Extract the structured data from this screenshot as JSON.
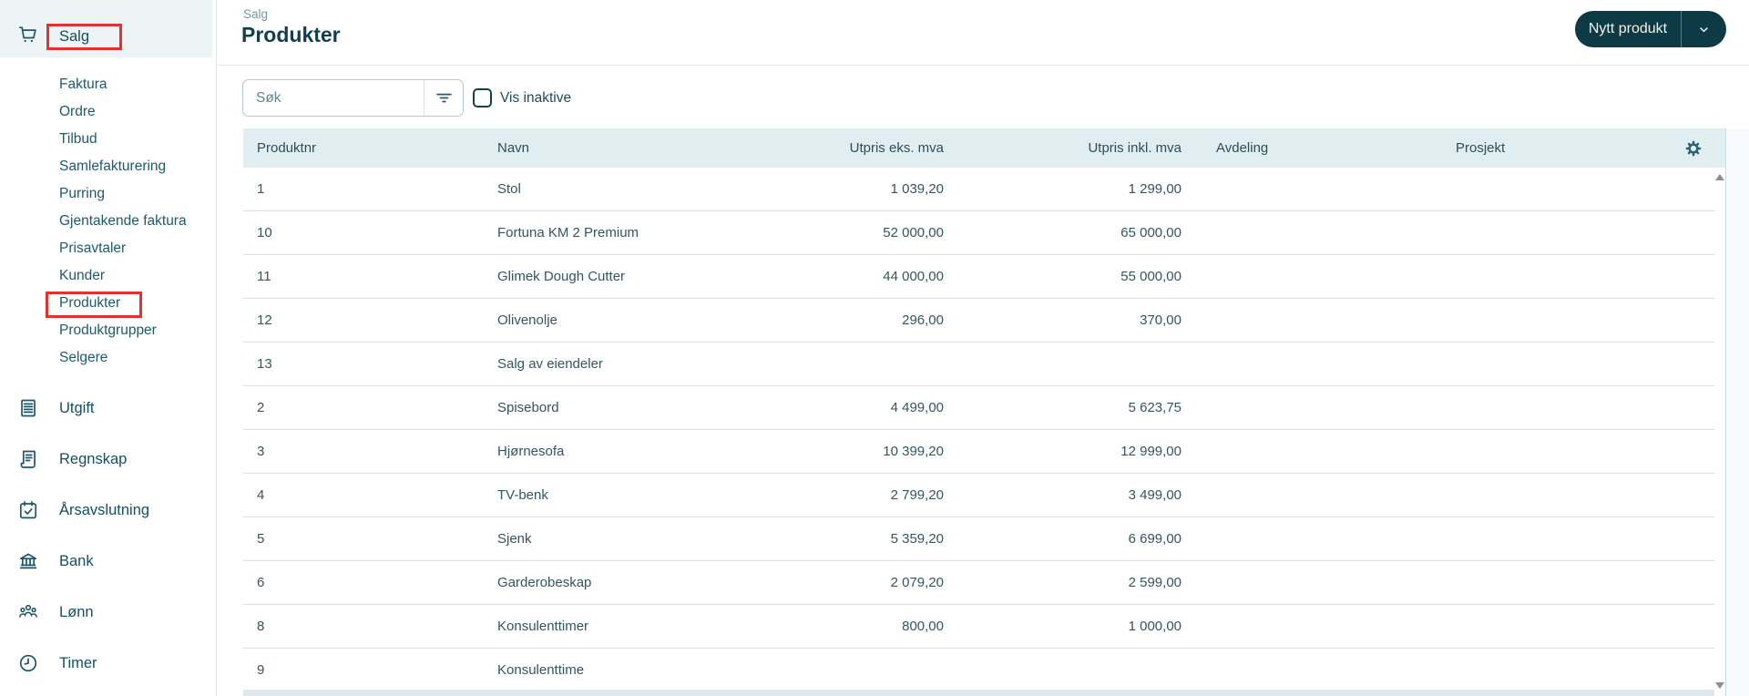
{
  "colors": {
    "brand_dark": "#0d3a45",
    "annotation_red": "#e23131",
    "table_header_bg": "#e1eef1",
    "row_border": "#d0e4e9",
    "nav_text": "#174f60",
    "button_text": "#f6f2e4"
  },
  "sidebar": {
    "salg": {
      "label": "Salg",
      "icon": "cart-icon",
      "items": [
        "Faktura",
        "Ordre",
        "Tilbud",
        "Samlefakturering",
        "Purring",
        "Gjentakende faktura",
        "Prisavtaler",
        "Kunder",
        "Produkter",
        "Produktgrupper",
        "Selgere"
      ],
      "annotated_item": "Produkter"
    },
    "sections": [
      {
        "label": "Utgift",
        "icon": "expense-document-icon"
      },
      {
        "label": "Regnskap",
        "icon": "ledger-icon"
      },
      {
        "label": "Årsavslutning",
        "icon": "calendar-check-icon"
      },
      {
        "label": "Bank",
        "icon": "bank-icon"
      },
      {
        "label": "Lønn",
        "icon": "people-icon"
      },
      {
        "label": "Timer",
        "icon": "clock-icon"
      }
    ]
  },
  "header": {
    "breadcrumb": "Salg",
    "title": "Produkter",
    "primary_button": {
      "label": "Nytt produkt",
      "dropdown_icon": "chevron-down-icon"
    }
  },
  "toolbar": {
    "search": {
      "placeholder": "Søk",
      "value": "",
      "filter_icon": "filter-icon"
    },
    "show_inactive": {
      "label": "Vis inaktive",
      "checked": false
    }
  },
  "table": {
    "settings_icon": "gear-icon",
    "columns": [
      {
        "label": "Produktnr",
        "align": "left"
      },
      {
        "label": "Navn",
        "align": "left"
      },
      {
        "label": "Utpris eks. mva",
        "align": "right"
      },
      {
        "label": "Utpris inkl. mva",
        "align": "right"
      },
      {
        "label": "Avdeling",
        "align": "left"
      },
      {
        "label": "Prosjekt",
        "align": "left"
      },
      {
        "label": "",
        "align": "right"
      }
    ],
    "rows": [
      {
        "produktnr": "1",
        "navn": "Stol",
        "utpris_eks_mva": "1 039,20",
        "utpris_inkl_mva": "1 299,00",
        "avdeling": "",
        "prosjekt": ""
      },
      {
        "produktnr": "10",
        "navn": "Fortuna KM 2 Premium",
        "utpris_eks_mva": "52 000,00",
        "utpris_inkl_mva": "65 000,00",
        "avdeling": "",
        "prosjekt": ""
      },
      {
        "produktnr": "11",
        "navn": "Glimek Dough Cutter",
        "utpris_eks_mva": "44 000,00",
        "utpris_inkl_mva": "55 000,00",
        "avdeling": "",
        "prosjekt": ""
      },
      {
        "produktnr": "12",
        "navn": "Olivenolje",
        "utpris_eks_mva": "296,00",
        "utpris_inkl_mva": "370,00",
        "avdeling": "",
        "prosjekt": ""
      },
      {
        "produktnr": "13",
        "navn": "Salg av eiendeler",
        "utpris_eks_mva": "",
        "utpris_inkl_mva": "",
        "avdeling": "",
        "prosjekt": ""
      },
      {
        "produktnr": "2",
        "navn": "Spisebord",
        "utpris_eks_mva": "4 499,00",
        "utpris_inkl_mva": "5 623,75",
        "avdeling": "",
        "prosjekt": ""
      },
      {
        "produktnr": "3",
        "navn": "Hjørnesofa",
        "utpris_eks_mva": "10 399,20",
        "utpris_inkl_mva": "12 999,00",
        "avdeling": "",
        "prosjekt": ""
      },
      {
        "produktnr": "4",
        "navn": "TV-benk",
        "utpris_eks_mva": "2 799,20",
        "utpris_inkl_mva": "3 499,00",
        "avdeling": "",
        "prosjekt": ""
      },
      {
        "produktnr": "5",
        "navn": "Sjenk",
        "utpris_eks_mva": "5 359,20",
        "utpris_inkl_mva": "6 699,00",
        "avdeling": "",
        "prosjekt": ""
      },
      {
        "produktnr": "6",
        "navn": "Garderobeskap",
        "utpris_eks_mva": "2 079,20",
        "utpris_inkl_mva": "2 599,00",
        "avdeling": "",
        "prosjekt": ""
      },
      {
        "produktnr": "8",
        "navn": "Konsulenttimer",
        "utpris_eks_mva": "800,00",
        "utpris_inkl_mva": "1 000,00",
        "avdeling": "",
        "prosjekt": ""
      },
      {
        "produktnr": "9",
        "navn": "Konsulenttime",
        "utpris_eks_mva": "",
        "utpris_inkl_mva": "",
        "avdeling": "",
        "prosjekt": ""
      }
    ]
  }
}
